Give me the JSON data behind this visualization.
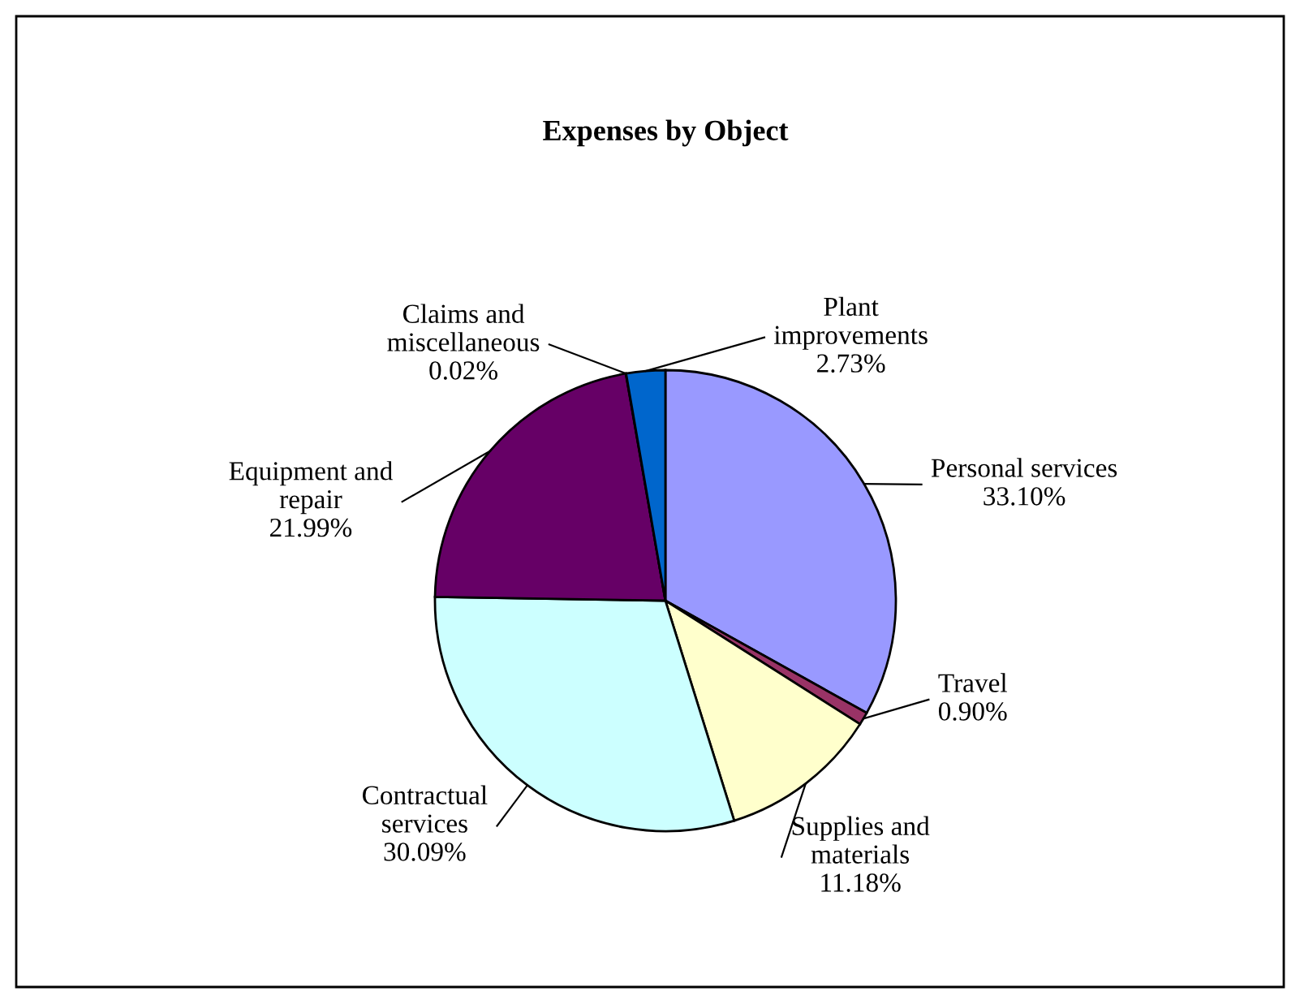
{
  "chart_data": {
    "type": "pie",
    "title": "Expenses by Object",
    "categories": [
      "Personal services",
      "Travel",
      "Supplies and\nmaterials",
      "Contractual\nservices",
      "Equipment and\nrepair",
      "Claims and\nmiscellaneous",
      "Plant\nimprovements"
    ],
    "values": [
      33.1,
      0.9,
      11.18,
      30.09,
      21.99,
      0.02,
      2.73
    ],
    "value_labels": [
      "33.10%",
      "0.90%",
      "11.18%",
      "30.09%",
      "21.99%",
      "0.02%",
      "2.73%"
    ],
    "colors": [
      "#9999ff",
      "#993366",
      "#ffffcc",
      "#ccffff",
      "#660066",
      "#ff8080",
      "#0066cc"
    ],
    "legend": false
  }
}
